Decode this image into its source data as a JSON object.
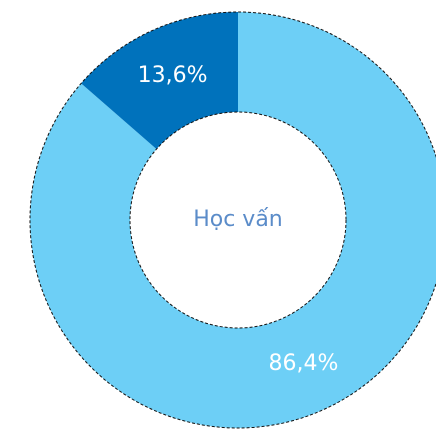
{
  "chart_data": {
    "type": "donut",
    "title": "Học vấn",
    "values": [
      86.4,
      13.6
    ],
    "value_labels": [
      "86,4%",
      "13,6%"
    ],
    "colors": [
      "#6dcff6",
      "#0072bc"
    ]
  }
}
